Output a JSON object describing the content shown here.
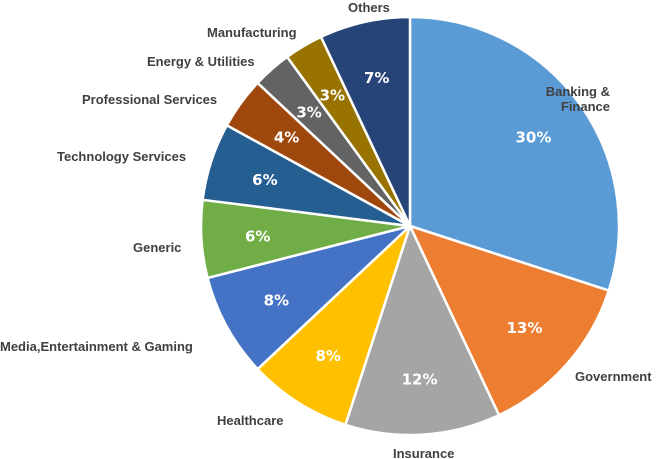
{
  "chart_data": {
    "type": "pie",
    "start_angle": "12 o'clock, clockwise",
    "categories": [
      "Banking & Finance",
      "Government",
      "Insurance",
      "Healthcare",
      "Media,Entertainment & Gaming",
      "Generic",
      "Technology Services",
      "Professional Services",
      "Energy & Utilities",
      "Manufacturing",
      "Others"
    ],
    "display_labels": [
      "Banking &\nFinance",
      "Government",
      "Insurance",
      "Healthcare",
      "Media,Entertainment & Gaming",
      "Generic",
      "Technology Services",
      "Professional Services",
      "Energy & Utilities",
      "Manufacturing",
      "Others"
    ],
    "values": [
      30,
      13,
      12,
      8,
      8,
      6,
      6,
      4,
      3,
      3,
      7
    ],
    "data_labels": [
      "30%",
      "13%",
      "12%",
      "8%",
      "8%",
      "6%",
      "6%",
      "4%",
      "3%",
      "3%",
      "7%"
    ],
    "colors": [
      "#5B9BD5",
      "#ED7D31",
      "#A5A5A5",
      "#FFC000",
      "#4472C4",
      "#70AD47",
      "#255E91",
      "#9E480E",
      "#636363",
      "#997300",
      "#264478"
    ],
    "legend": "none"
  }
}
